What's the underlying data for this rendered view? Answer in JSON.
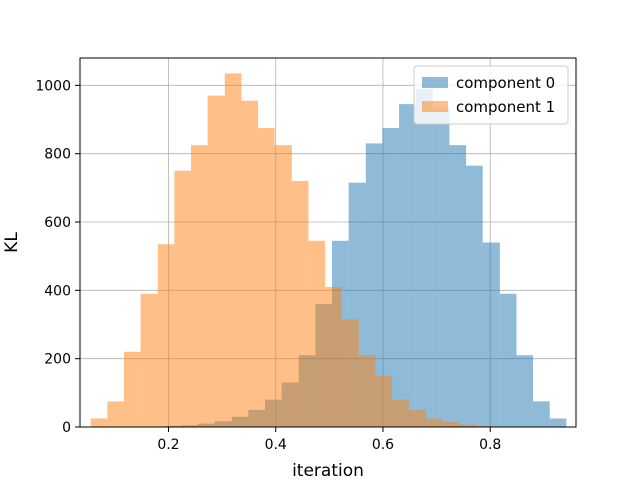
{
  "chart_data": {
    "type": "histogram",
    "xlabel": "iteration",
    "ylabel": "KL",
    "xlim": [
      0.035,
      0.96
    ],
    "ylim": [
      0,
      1080
    ],
    "xticks": [
      0.2,
      0.4,
      0.6,
      0.8
    ],
    "xtick_labels": [
      "0.2",
      "0.4",
      "0.6",
      "0.8"
    ],
    "yticks": [
      0,
      200,
      400,
      600,
      800,
      1000
    ],
    "ytick_labels": [
      "0",
      "200",
      "400",
      "600",
      "800",
      "1000"
    ],
    "grid": true,
    "legend_position": "top-right",
    "series": [
      {
        "name": "component 0",
        "color": "#1f77b4",
        "alpha": 0.5,
        "bins": [
          {
            "x0": 0.193,
            "x1": 0.224,
            "count": 3
          },
          {
            "x0": 0.224,
            "x1": 0.255,
            "count": 5
          },
          {
            "x0": 0.255,
            "x1": 0.286,
            "count": 10
          },
          {
            "x0": 0.286,
            "x1": 0.318,
            "count": 17
          },
          {
            "x0": 0.318,
            "x1": 0.349,
            "count": 30
          },
          {
            "x0": 0.349,
            "x1": 0.38,
            "count": 50
          },
          {
            "x0": 0.38,
            "x1": 0.411,
            "count": 80
          },
          {
            "x0": 0.411,
            "x1": 0.443,
            "count": 130
          },
          {
            "x0": 0.443,
            "x1": 0.474,
            "count": 210
          },
          {
            "x0": 0.474,
            "x1": 0.505,
            "count": 360
          },
          {
            "x0": 0.505,
            "x1": 0.536,
            "count": 545
          },
          {
            "x0": 0.536,
            "x1": 0.568,
            "count": 715
          },
          {
            "x0": 0.568,
            "x1": 0.599,
            "count": 830
          },
          {
            "x0": 0.599,
            "x1": 0.63,
            "count": 875
          },
          {
            "x0": 0.63,
            "x1": 0.661,
            "count": 945
          },
          {
            "x0": 0.661,
            "x1": 0.693,
            "count": 990
          },
          {
            "x0": 0.693,
            "x1": 0.724,
            "count": 935
          },
          {
            "x0": 0.724,
            "x1": 0.755,
            "count": 825
          },
          {
            "x0": 0.755,
            "x1": 0.786,
            "count": 765
          },
          {
            "x0": 0.786,
            "x1": 0.818,
            "count": 540
          },
          {
            "x0": 0.818,
            "x1": 0.849,
            "count": 390
          },
          {
            "x0": 0.849,
            "x1": 0.88,
            "count": 210
          },
          {
            "x0": 0.88,
            "x1": 0.911,
            "count": 75
          },
          {
            "x0": 0.911,
            "x1": 0.942,
            "count": 25
          }
        ]
      },
      {
        "name": "component 1",
        "color": "#ff7f0e",
        "alpha": 0.5,
        "bins": [
          {
            "x0": 0.055,
            "x1": 0.086,
            "count": 25
          },
          {
            "x0": 0.086,
            "x1": 0.117,
            "count": 75
          },
          {
            "x0": 0.117,
            "x1": 0.148,
            "count": 220
          },
          {
            "x0": 0.148,
            "x1": 0.18,
            "count": 390
          },
          {
            "x0": 0.18,
            "x1": 0.211,
            "count": 535
          },
          {
            "x0": 0.211,
            "x1": 0.242,
            "count": 750
          },
          {
            "x0": 0.242,
            "x1": 0.273,
            "count": 825
          },
          {
            "x0": 0.273,
            "x1": 0.305,
            "count": 970
          },
          {
            "x0": 0.305,
            "x1": 0.336,
            "count": 1035
          },
          {
            "x0": 0.336,
            "x1": 0.367,
            "count": 955
          },
          {
            "x0": 0.367,
            "x1": 0.398,
            "count": 875
          },
          {
            "x0": 0.398,
            "x1": 0.43,
            "count": 825
          },
          {
            "x0": 0.43,
            "x1": 0.461,
            "count": 720
          },
          {
            "x0": 0.461,
            "x1": 0.492,
            "count": 545
          },
          {
            "x0": 0.492,
            "x1": 0.523,
            "count": 410
          },
          {
            "x0": 0.523,
            "x1": 0.555,
            "count": 315
          },
          {
            "x0": 0.555,
            "x1": 0.586,
            "count": 210
          },
          {
            "x0": 0.586,
            "x1": 0.617,
            "count": 150
          },
          {
            "x0": 0.617,
            "x1": 0.648,
            "count": 80
          },
          {
            "x0": 0.648,
            "x1": 0.68,
            "count": 50
          },
          {
            "x0": 0.68,
            "x1": 0.711,
            "count": 25
          },
          {
            "x0": 0.711,
            "x1": 0.742,
            "count": 15
          },
          {
            "x0": 0.742,
            "x1": 0.773,
            "count": 7
          },
          {
            "x0": 0.773,
            "x1": 0.804,
            "count": 3
          }
        ]
      }
    ]
  }
}
